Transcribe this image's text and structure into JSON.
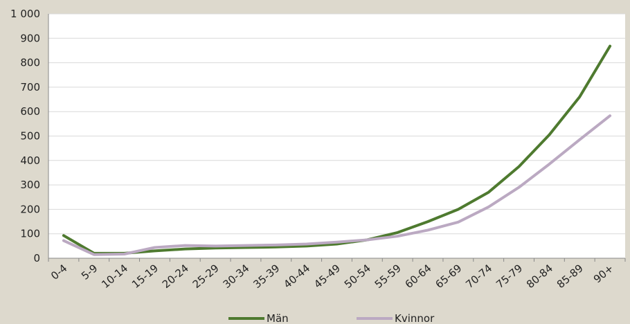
{
  "chart_data": {
    "type": "line",
    "title": "",
    "xlabel": "",
    "ylabel": "",
    "categories": [
      "0-4",
      "5-9",
      "10-14",
      "15-19",
      "20-24",
      "25-29",
      "30-34",
      "35-39",
      "40-44",
      "45-49",
      "50-54",
      "55-59",
      "60-64",
      "65-69",
      "70-74",
      "75-79",
      "80-84",
      "85-89",
      "90+"
    ],
    "ylim": [
      0,
      1000
    ],
    "yticks": [
      0,
      100,
      200,
      300,
      400,
      500,
      600,
      700,
      800,
      900,
      1000
    ],
    "ytick_labels": [
      "0",
      "100",
      "200",
      "300",
      "400",
      "500",
      "600",
      "700",
      "800",
      "900",
      "1 000"
    ],
    "grid": true,
    "legend_position": "bottom",
    "series": [
      {
        "name": "Män",
        "color": "#4e7a2f",
        "values": [
          93,
          20,
          20,
          30,
          38,
          42,
          44,
          46,
          50,
          58,
          75,
          105,
          150,
          200,
          270,
          375,
          505,
          660,
          868
        ]
      },
      {
        "name": "Kvinnor",
        "color": "#bba9c2",
        "values": [
          72,
          15,
          17,
          44,
          52,
          50,
          52,
          54,
          58,
          66,
          75,
          90,
          115,
          148,
          210,
          290,
          385,
          485,
          583
        ]
      }
    ]
  }
}
